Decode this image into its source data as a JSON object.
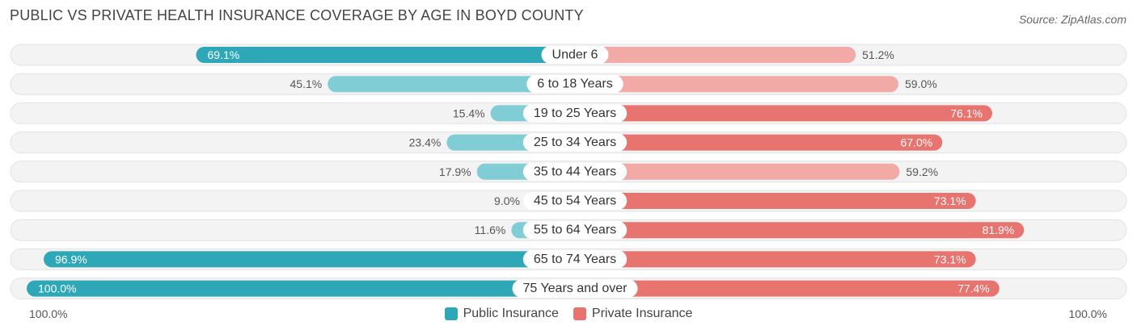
{
  "header": {
    "title": "PUBLIC VS PRIVATE HEALTH INSURANCE COVERAGE BY AGE IN BOYD COUNTY",
    "source": "Source: ZipAtlas.com"
  },
  "colors": {
    "public_strong": "#2ea8b6",
    "public_light": "#80cdd6",
    "private_strong": "#e8746f",
    "private_light": "#f2aaa7",
    "track": "#efefef"
  },
  "chart_data": {
    "type": "bar",
    "title": "PUBLIC VS PRIVATE HEALTH INSURANCE COVERAGE BY AGE IN BOYD COUNTY",
    "orientation": "horizontal-diverging",
    "categories": [
      "Under 6",
      "6 to 18 Years",
      "19 to 25 Years",
      "25 to 34 Years",
      "35 to 44 Years",
      "45 to 54 Years",
      "55 to 64 Years",
      "65 to 74 Years",
      "75 Years and over"
    ],
    "series": [
      {
        "name": "Public Insurance",
        "values": [
          69.1,
          45.1,
          15.4,
          23.4,
          17.9,
          9.0,
          11.6,
          96.9,
          100.0
        ],
        "labels": [
          "69.1%",
          "45.1%",
          "15.4%",
          "23.4%",
          "17.9%",
          "9.0%",
          "11.6%",
          "96.9%",
          "100.0%"
        ]
      },
      {
        "name": "Private Insurance",
        "values": [
          51.2,
          59.0,
          76.1,
          67.0,
          59.2,
          73.1,
          81.9,
          73.1,
          77.4
        ],
        "labels": [
          "51.2%",
          "59.0%",
          "76.1%",
          "67.0%",
          "59.2%",
          "73.1%",
          "81.9%",
          "73.1%",
          "77.4%"
        ]
      }
    ],
    "xlim": [
      0,
      100
    ],
    "axis_left_label": "100.0%",
    "axis_right_label": "100.0%",
    "legend": [
      "Public Insurance",
      "Private Insurance"
    ],
    "legend_position": "bottom-center"
  }
}
